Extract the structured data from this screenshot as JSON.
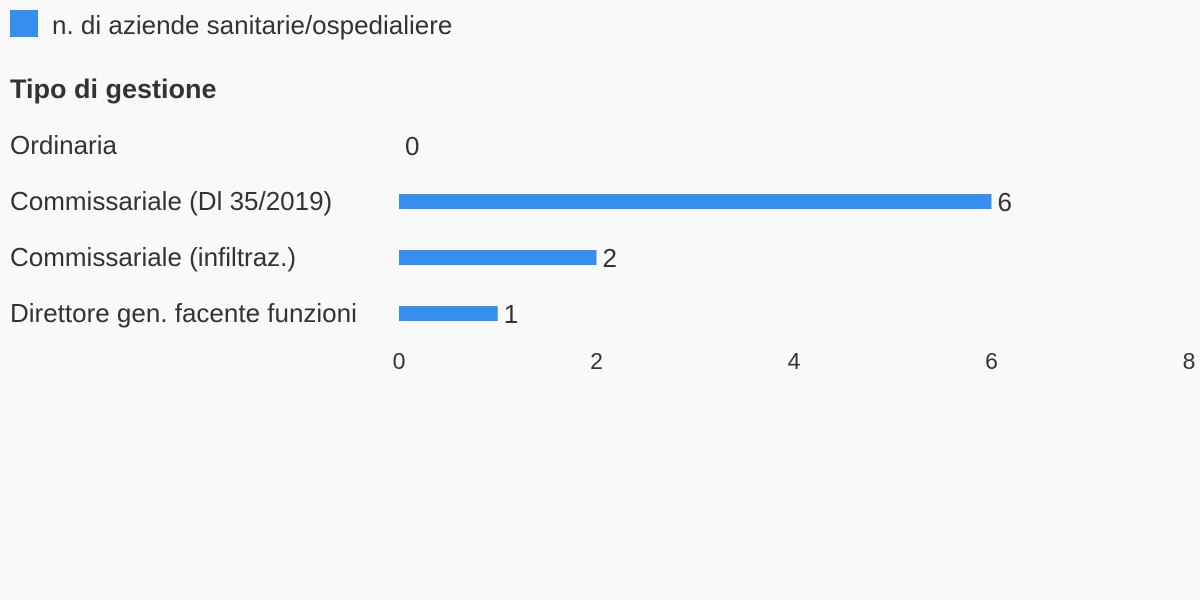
{
  "chart_data": {
    "type": "bar",
    "orientation": "horizontal",
    "y_label": "Tipo di gestione",
    "categories": [
      "Ordinaria",
      "Commissariale (Dl 35/2019)",
      "Commissariale (infiltraz.)",
      "Direttore gen. facente funzioni"
    ],
    "series": [
      {
        "name": "n. di aziende sanitarie/ospedialiere",
        "color": "#368fef",
        "values": [
          0,
          6,
          2,
          1
        ]
      }
    ],
    "xlim": [
      0,
      8
    ],
    "xticks": [
      0,
      2,
      4,
      6,
      8
    ],
    "grid": false
  }
}
